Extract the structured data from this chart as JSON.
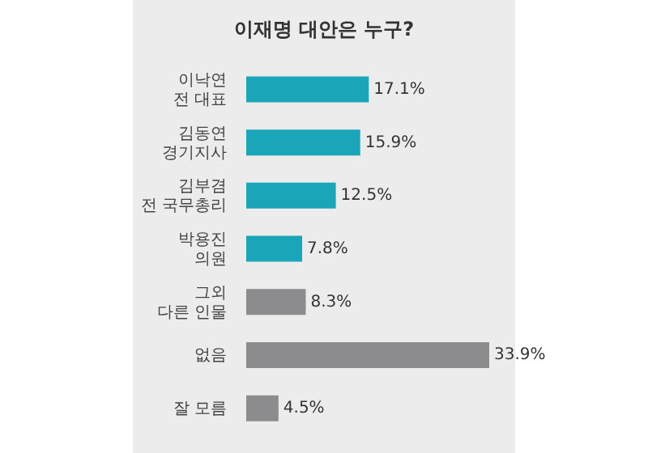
{
  "chart_data": {
    "type": "bar",
    "orientation": "horizontal",
    "title": "이재명 대안은 누구?",
    "categories": [
      "이낙연\n전 대표",
      "김동연\n경기지사",
      "김부겸\n전 국무총리",
      "박용진\n의원",
      "그외\n다른 인물",
      "없음",
      "잘 모름"
    ],
    "values": [
      17.1,
      15.9,
      12.5,
      7.8,
      8.3,
      33.9,
      4.5
    ],
    "colors": [
      "#1aa5b8",
      "#1aa5b8",
      "#1aa5b8",
      "#1aa5b8",
      "#8c8c8e",
      "#8c8c8e",
      "#8c8c8e"
    ],
    "value_labels": [
      "17.1%",
      "15.9%",
      "12.5%",
      "7.8%",
      "8.3%",
      "33.9%",
      "4.5%"
    ],
    "grid": false,
    "legend": false
  }
}
